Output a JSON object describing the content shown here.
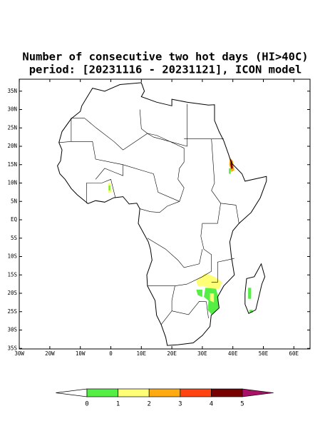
{
  "title": "Number of consecutive two hot days (HI>40C)",
  "subtitle": "period: [20231116 - 20231121], ICON model",
  "lat_ticks": [
    {
      "value": 35,
      "label": "35N"
    },
    {
      "value": 30,
      "label": "30N"
    },
    {
      "value": 25,
      "label": "25N"
    },
    {
      "value": 20,
      "label": "20N"
    },
    {
      "value": 15,
      "label": "15N"
    },
    {
      "value": 10,
      "label": "10N"
    },
    {
      "value": 5,
      "label": "5N"
    },
    {
      "value": 0,
      "label": "EQ"
    },
    {
      "value": -5,
      "label": "5S"
    },
    {
      "value": -10,
      "label": "10S"
    },
    {
      "value": -15,
      "label": "15S"
    },
    {
      "value": -20,
      "label": "20S"
    },
    {
      "value": -25,
      "label": "25S"
    },
    {
      "value": -30,
      "label": "30S"
    },
    {
      "value": -35,
      "label": "35S"
    }
  ],
  "lon_ticks": [
    {
      "value": -30,
      "label": "30W"
    },
    {
      "value": -20,
      "label": "20W"
    },
    {
      "value": -10,
      "label": "10W"
    },
    0,
    {
      "value": 10,
      "label": "10E"
    },
    {
      "value": 20,
      "label": "20E"
    },
    {
      "value": 30,
      "label": "30E"
    },
    {
      "value": 40,
      "label": "40E"
    },
    {
      "value": 50,
      "label": "50E"
    },
    {
      "value": 60,
      "label": "60E"
    }
  ],
  "colorbar": {
    "levels": [
      0,
      1,
      2,
      3,
      4,
      5
    ],
    "colors": [
      "#ffffff",
      "#55ee44",
      "#ffff77",
      "#ffaa11",
      "#ff4411",
      "#770000",
      "#aa1166"
    ]
  }
}
